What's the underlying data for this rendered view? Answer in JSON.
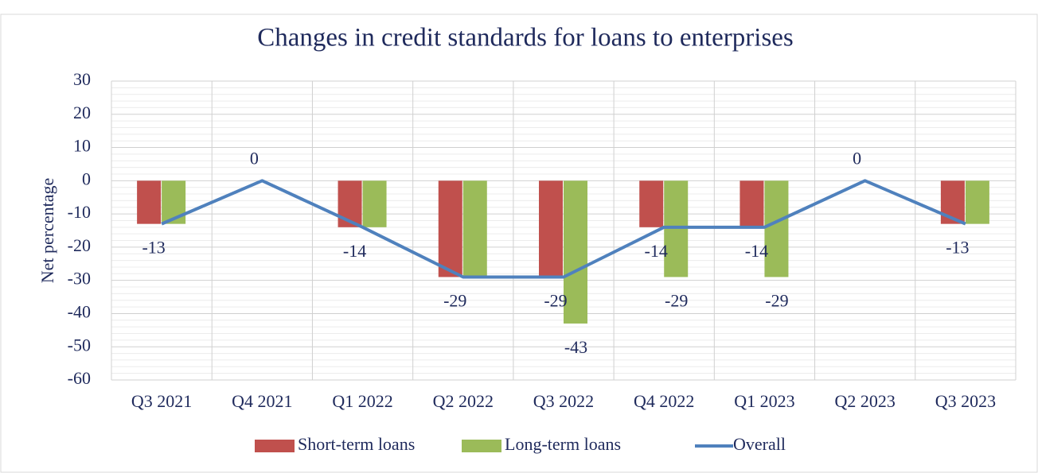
{
  "chart_data": {
    "type": "bar_line",
    "title": "Changes in credit standards for loans to enterprises",
    "y_label": "Net percentage",
    "categories": [
      "Q3 2021",
      "Q4 2021",
      "Q1 2022",
      "Q2 2022",
      "Q3 2022",
      "Q4 2022",
      "Q1 2023",
      "Q2 2023",
      "Q3 2023"
    ],
    "series": [
      {
        "name": "Short-term loans",
        "type": "bar",
        "color": "#c0504d",
        "values": [
          -13,
          0,
          -14,
          -29,
          -29,
          -14,
          -14,
          0,
          -13
        ]
      },
      {
        "name": "Long-term loans",
        "type": "bar",
        "color": "#9bbb59",
        "values": [
          -13,
          0,
          -14,
          -29,
          -43,
          -29,
          -29,
          0,
          -13
        ]
      },
      {
        "name": "Overall",
        "type": "line",
        "color": "#4f81bd",
        "values": [
          -13,
          0,
          -14,
          -29,
          -29,
          -14,
          -14,
          0,
          -13
        ]
      }
    ],
    "ylim": [
      -60,
      30
    ],
    "yticks": [
      -60,
      -50,
      -40,
      -30,
      -20,
      -10,
      0,
      10,
      20,
      30
    ],
    "grid": true,
    "legend": "bottom"
  }
}
